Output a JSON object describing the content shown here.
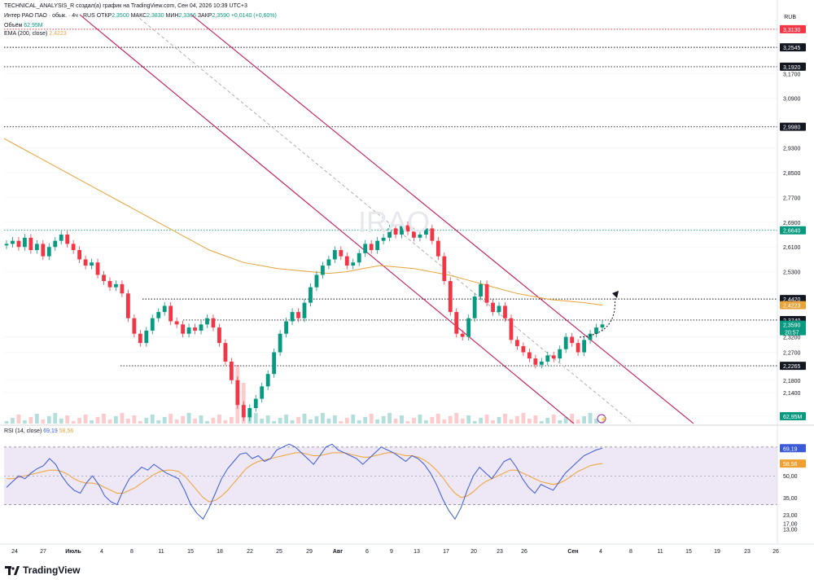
{
  "caption": "TECHNICAL_ANALYSIS_R создал(а) график на TradingView.com, Сен 04, 2026 10:39 UTC+3",
  "legend": {
    "symbol": "Интер РАО ПАО · обык. · 4ч · RUS",
    "o_label": "ОТКР",
    "o": "2,3500",
    "h_label": "МАКС",
    "h": "2,3830",
    "l_label": "МИН",
    "l": "2,3366",
    "c_label": "ЗАКР",
    "c": "2,3590",
    "change": "+0,0140 (+0,60%)",
    "volume_label": "Объём",
    "volume": "62,95M",
    "ema_label": "EMA (200, close)",
    "ema": "2,4223"
  },
  "currency": "RUB",
  "rsi_legend": {
    "label": "RSI (14, close)",
    "rsi": "69,19",
    "ma": "58,56"
  },
  "brand": "TradingView",
  "colors": {
    "up": "#089981",
    "down": "#f23645",
    "ema": "#e8a33b",
    "channel": "#c2185b",
    "rsi": "#3b5ad8",
    "rsi_ma": "#f0a030",
    "rsi_band": "#ede7f6"
  },
  "chart_data": {
    "type": "candlestick",
    "timeframe": "4h",
    "symbol": "IRAO",
    "y_scale_ticks": [
      "3,1700",
      "3,0900",
      "2,9300",
      "2,8500",
      "2,7700",
      "2,6900",
      "2,6100",
      "2,5300",
      "2,3200",
      "2,2700",
      "2,1800",
      "2,1400",
      "2,0640"
    ],
    "ylim": [
      2.04,
      3.36
    ],
    "x_ticks": [
      "24",
      "27",
      "Июль",
      "4",
      "8",
      "11",
      "15",
      "18",
      "22",
      "25",
      "29",
      "Авг",
      "6",
      "9",
      "13",
      "17",
      "20",
      "23",
      "26",
      "Сен",
      "4",
      "8",
      "11",
      "15",
      "19",
      "23",
      "26"
    ],
    "horizontal_levels": [
      {
        "label": "3,3130",
        "value": 3.313,
        "color": "#f23645"
      },
      {
        "label": "3,2545",
        "value": 3.2545,
        "color": "#131722"
      },
      {
        "label": "3,1920",
        "value": 3.192,
        "color": "#131722"
      },
      {
        "label": "2,9980",
        "value": 2.998,
        "color": "#131722"
      },
      {
        "label": "2,6640",
        "value": 2.664,
        "color": "#089981"
      },
      {
        "label": "2,4420",
        "value": 2.442,
        "color": "#131722"
      },
      {
        "label": "2,3740",
        "value": 2.374,
        "color": "#131722"
      },
      {
        "label": "2,2265",
        "value": 2.2265,
        "color": "#131722"
      }
    ],
    "price_tags": [
      {
        "label": "2,4223",
        "color": "#e8a33b"
      },
      {
        "label": "2,3590",
        "sub": "20:57",
        "color": "#089981"
      },
      {
        "label": "62,95M",
        "color": "#089981"
      }
    ],
    "close_series": [
      2.62,
      2.63,
      2.61,
      2.64,
      2.6,
      2.62,
      2.58,
      2.61,
      2.63,
      2.65,
      2.62,
      2.6,
      2.57,
      2.55,
      2.56,
      2.52,
      2.5,
      2.48,
      2.49,
      2.46,
      2.38,
      2.33,
      2.3,
      2.34,
      2.38,
      2.4,
      2.42,
      2.37,
      2.36,
      2.33,
      2.35,
      2.34,
      2.36,
      2.38,
      2.35,
      2.3,
      2.24,
      2.18,
      2.1,
      2.06,
      2.09,
      2.12,
      2.16,
      2.2,
      2.27,
      2.33,
      2.37,
      2.4,
      2.38,
      2.43,
      2.48,
      2.52,
      2.55,
      2.57,
      2.6,
      2.58,
      2.55,
      2.56,
      2.59,
      2.62,
      2.6,
      2.63,
      2.64,
      2.67,
      2.65,
      2.68,
      2.66,
      2.64,
      2.65,
      2.67,
      2.63,
      2.58,
      2.5,
      2.4,
      2.33,
      2.32,
      2.38,
      2.45,
      2.49,
      2.43,
      2.4,
      2.42,
      2.38,
      2.31,
      2.29,
      2.27,
      2.25,
      2.23,
      2.24,
      2.26,
      2.25,
      2.28,
      2.32,
      2.3,
      2.27,
      2.31,
      2.33,
      2.35,
      2.36
    ],
    "ema200_series": [
      2.96,
      2.93,
      2.9,
      2.87,
      2.84,
      2.81,
      2.78,
      2.75,
      2.72,
      2.69,
      2.66,
      2.63,
      2.6,
      2.58,
      2.56,
      2.55,
      2.54,
      2.535,
      2.53,
      2.525,
      2.53,
      2.54,
      2.55,
      2.545,
      2.54,
      2.53,
      2.52,
      2.505,
      2.49,
      2.475,
      2.46,
      2.45,
      2.44,
      2.435,
      2.43,
      2.4223
    ],
    "rsi": {
      "ticks": [
        "69,19",
        "58,56",
        "50,00",
        "35,00",
        "23,00",
        "17,00",
        "13,00"
      ],
      "upper_band": 70,
      "lower_band": 30,
      "values": [
        42,
        46,
        50,
        48,
        52,
        55,
        57,
        62,
        58,
        50,
        44,
        40,
        38,
        45,
        50,
        44,
        36,
        32,
        30,
        40,
        48,
        52,
        56,
        54,
        58,
        55,
        52,
        50,
        48,
        40,
        30,
        24,
        20,
        28,
        38,
        48,
        55,
        60,
        65,
        66,
        62,
        64,
        60,
        62,
        68,
        70,
        72,
        70,
        66,
        62,
        58,
        64,
        70,
        72,
        68,
        66,
        64,
        62,
        58,
        62,
        66,
        70,
        68,
        66,
        63,
        60,
        64,
        62,
        58,
        52,
        44,
        34,
        26,
        20,
        28,
        40,
        50,
        56,
        52,
        48,
        54,
        60,
        62,
        56,
        48,
        42,
        38,
        44,
        42,
        40,
        46,
        52,
        56,
        60,
        64,
        66,
        68,
        69.19
      ],
      "ma_values": [
        48,
        48,
        49,
        50,
        51,
        52,
        53,
        54,
        54,
        53,
        51,
        48,
        46,
        45,
        45,
        44,
        42,
        40,
        38,
        38,
        40,
        42,
        45,
        48,
        51,
        53,
        54,
        54,
        53,
        50,
        45,
        40,
        35,
        32,
        33,
        36,
        40,
        45,
        50,
        55,
        58,
        60,
        61,
        62,
        63,
        64,
        65,
        66,
        66,
        65,
        64,
        64,
        65,
        66,
        66,
        66,
        65,
        64,
        63,
        63,
        64,
        65,
        66,
        66,
        65,
        64,
        64,
        63,
        61,
        58,
        54,
        49,
        43,
        38,
        35,
        36,
        39,
        43,
        46,
        48,
        50,
        52,
        54,
        54,
        52,
        50,
        48,
        46,
        45,
        44,
        45,
        47,
        50,
        53,
        55,
        57,
        58,
        58.56
      ]
    }
  }
}
